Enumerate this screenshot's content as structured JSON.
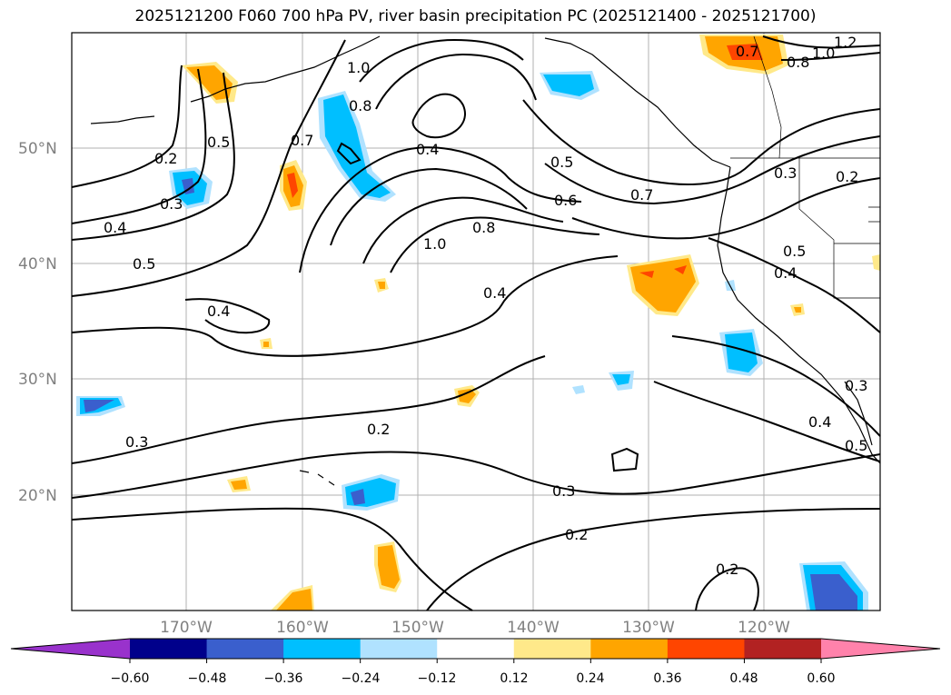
{
  "title": "2025121200 F060 700 hPa PV, river basin precipitation PC (2025121400 - 2025121700)",
  "lat_labels": [
    "50°N",
    "40°N",
    "30°N",
    "20°N"
  ],
  "lon_labels": [
    "170°W",
    "160°W",
    "150°W",
    "140°W",
    "130°W",
    "120°W"
  ],
  "contour_labels": [
    "1.2",
    "0.7",
    "1.0",
    "0.8",
    "1.0",
    "0.8",
    "0.2",
    "0.5",
    "0.7",
    "0.3",
    "0.4",
    "0.5",
    "0.7",
    "0.6",
    "0.3",
    "0.2",
    "0.4",
    "0.5",
    "1.0",
    "0.8",
    "0.5",
    "0.4",
    "0.4",
    "0.3",
    "0.2",
    "0.3",
    "0.4",
    "0.5",
    "0.3",
    "0.2",
    "0.2",
    "0.4"
  ],
  "colorbar": {
    "tick_labels": [
      "−0.60",
      "−0.48",
      "−0.36",
      "−0.24",
      "−0.12",
      "0.12",
      "0.24",
      "0.36",
      "0.48",
      "0.60"
    ],
    "colors": [
      "#9932cc",
      "#00008b",
      "#3a5fcd",
      "#00bfff",
      "#b0e2ff",
      "#ffffff",
      "#ffe98a",
      "#ffa500",
      "#ff4500",
      "#b22222",
      "#ff82ab"
    ]
  }
}
